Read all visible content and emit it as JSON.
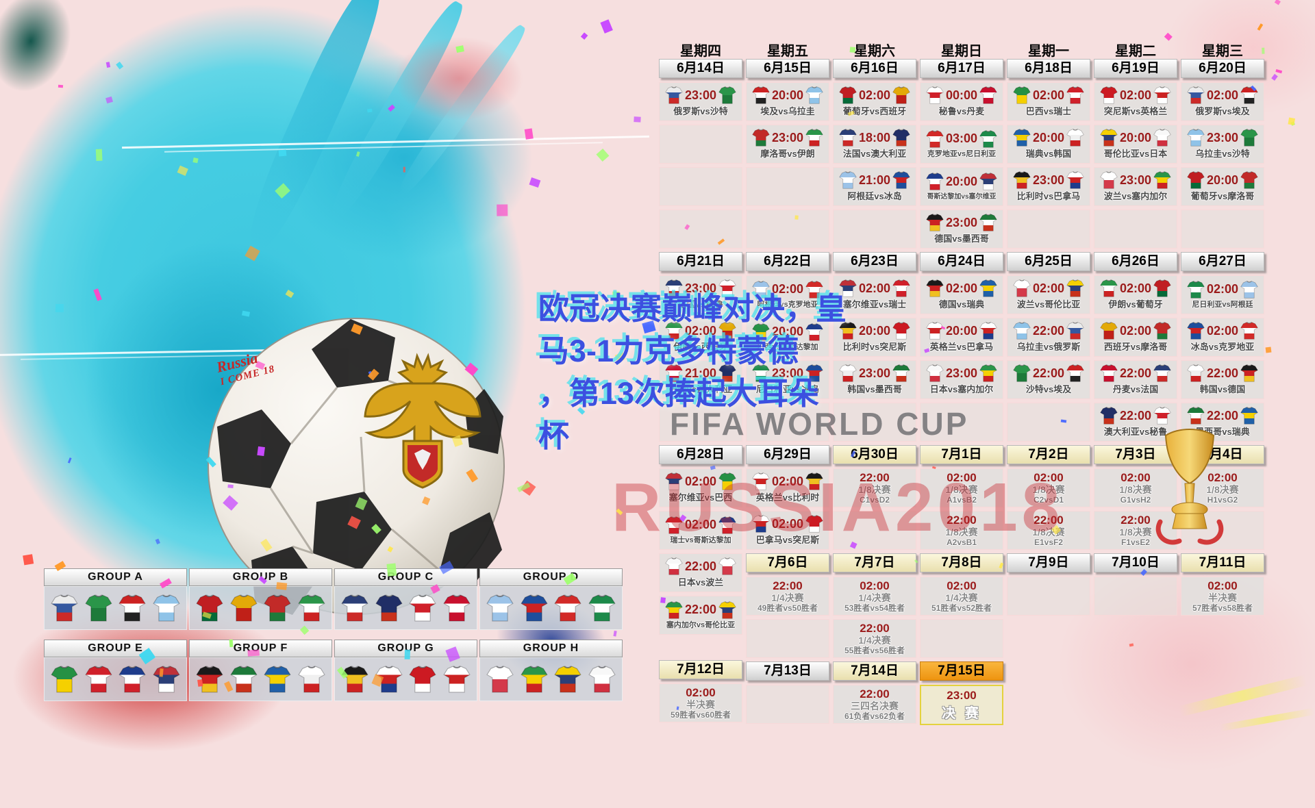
{
  "page": {
    "headline": "欧冠决赛巅峰对决，皇\n马3-1力克多特蒙德\n，第13次捧起大耳朵\n杯",
    "watermark": "FIFA WORLD CUP",
    "brand": "RUSSIA2018",
    "ball_script_1": "Russia",
    "ball_script_2": "I COME 18"
  },
  "colors": {
    "time_red": "#9b1b1b",
    "headline_blue": "#3c50e0",
    "brand_red": "#c6262c",
    "final_orange": "#ee9410"
  },
  "calendar": {
    "vs": "vs",
    "weekdays": [
      "星期四",
      "星期五",
      "星期六",
      "星期日",
      "星期一",
      "星期二",
      "星期三"
    ],
    "columns": [
      [
        {
          "type": "wd",
          "text": "星期四"
        },
        {
          "type": "date",
          "text": "6月14日",
          "variant": "w"
        },
        {
          "type": "match",
          "time": "23:00",
          "home": "俄罗斯",
          "away": "沙特"
        },
        {
          "type": "empty"
        },
        {
          "type": "empty"
        },
        {
          "type": "empty"
        },
        {
          "type": "date",
          "text": "6月21日",
          "variant": "w"
        },
        {
          "type": "match",
          "time": "23:00",
          "home": "法国",
          "away": "秘鲁"
        },
        {
          "type": "match",
          "time": "02:00",
          "home": "伊朗",
          "away": "西班牙"
        },
        {
          "type": "match",
          "time": "21:00",
          "home": "丹麦",
          "away": "澳大利亚"
        },
        {
          "type": "empty"
        },
        {
          "type": "date",
          "text": "6月28日",
          "variant": "w"
        },
        {
          "type": "match",
          "time": "02:00",
          "home": "塞尔维亚",
          "away": "巴西"
        },
        {
          "type": "match",
          "time": "02:00",
          "home": "瑞士",
          "away": "哥斯达黎加"
        },
        {
          "type": "match",
          "time": "22:00",
          "home": "日本",
          "away": "波兰"
        },
        {
          "type": "match",
          "time": "22:00",
          "home": "塞内加尔",
          "away": "哥伦比亚"
        },
        {
          "type": "gap",
          "h": 32
        },
        {
          "type": "date",
          "text": "7月12日",
          "variant": "c"
        },
        {
          "type": "ko",
          "time": "02:00",
          "stage": "半决赛",
          "teams": "59胜者vs60胜者"
        }
      ],
      [
        {
          "type": "wd",
          "text": "星期五"
        },
        {
          "type": "date",
          "text": "6月15日",
          "variant": "w"
        },
        {
          "type": "match",
          "time": "20:00",
          "home": "埃及",
          "away": "乌拉圭"
        },
        {
          "type": "match",
          "time": "23:00",
          "home": "摩洛哥",
          "away": "伊朗"
        },
        {
          "type": "empty"
        },
        {
          "type": "empty"
        },
        {
          "type": "date",
          "text": "6月22日",
          "variant": "w"
        },
        {
          "type": "match",
          "time": "02:00",
          "home": "阿根廷",
          "away": "克罗地亚"
        },
        {
          "type": "match",
          "time": "20:00",
          "home": "巴西",
          "away": "哥斯达黎加"
        },
        {
          "type": "match",
          "time": "23:00",
          "home": "尼日利亚",
          "away": "冰岛"
        },
        {
          "type": "empty"
        },
        {
          "type": "date",
          "text": "6月29日",
          "variant": "w"
        },
        {
          "type": "match",
          "time": "02:00",
          "home": "英格兰",
          "away": "比利时"
        },
        {
          "type": "match",
          "time": "02:00",
          "home": "巴拿马",
          "away": "突尼斯"
        },
        {
          "type": "date",
          "text": "7月6日",
          "variant": "c"
        },
        {
          "type": "ko",
          "time": "22:00",
          "stage": "1/4决赛",
          "teams": "49胜者vs50胜者"
        },
        {
          "type": "empty"
        },
        {
          "type": "date",
          "text": "7月13日",
          "variant": "w"
        },
        {
          "type": "empty"
        }
      ],
      [
        {
          "type": "wd",
          "text": "星期六"
        },
        {
          "type": "date",
          "text": "6月16日",
          "variant": "w"
        },
        {
          "type": "match",
          "time": "02:00",
          "home": "葡萄牙",
          "away": "西班牙"
        },
        {
          "type": "match",
          "time": "18:00",
          "home": "法国",
          "away": "澳大利亚"
        },
        {
          "type": "match",
          "time": "21:00",
          "home": "阿根廷",
          "away": "冰岛"
        },
        {
          "type": "empty"
        },
        {
          "type": "date",
          "text": "6月23日",
          "variant": "w"
        },
        {
          "type": "match",
          "time": "02:00",
          "home": "塞尔维亚",
          "away": "瑞士"
        },
        {
          "type": "match",
          "time": "20:00",
          "home": "比利时",
          "away": "突尼斯"
        },
        {
          "type": "match",
          "time": "23:00",
          "home": "韩国",
          "away": "墨西哥"
        },
        {
          "type": "empty"
        },
        {
          "type": "date",
          "text": "6月30日",
          "variant": "c"
        },
        {
          "type": "ko",
          "time": "22:00",
          "stage": "1/8决赛",
          "teams": "C1vsD2"
        },
        {
          "type": "empty"
        },
        {
          "type": "date",
          "text": "7月7日",
          "variant": "c"
        },
        {
          "type": "ko",
          "time": "02:00",
          "stage": "1/4决赛",
          "teams": "53胜者vs54胜者"
        },
        {
          "type": "ko",
          "time": "22:00",
          "stage": "1/4决赛",
          "teams": "55胜者vs56胜者"
        },
        {
          "type": "date",
          "text": "7月14日",
          "variant": "c"
        },
        {
          "type": "ko",
          "time": "22:00",
          "stage": "三四名决赛",
          "teams": "61负者vs62负者"
        }
      ],
      [
        {
          "type": "wd",
          "text": "星期日"
        },
        {
          "type": "date",
          "text": "6月17日",
          "variant": "w"
        },
        {
          "type": "match",
          "time": "00:00",
          "home": "秘鲁",
          "away": "丹麦"
        },
        {
          "type": "match",
          "time": "03:00",
          "home": "克罗地亚",
          "away": "尼日利亚"
        },
        {
          "type": "match",
          "time": "20:00",
          "home": "哥斯达黎加",
          "away": "塞尔维亚"
        },
        {
          "type": "match",
          "time": "23:00",
          "home": "德国",
          "away": "墨西哥"
        },
        {
          "type": "date",
          "text": "6月24日",
          "variant": "w"
        },
        {
          "type": "match",
          "time": "02:00",
          "home": "德国",
          "away": "瑞典"
        },
        {
          "type": "match",
          "time": "20:00",
          "home": "英格兰",
          "away": "巴拿马"
        },
        {
          "type": "match",
          "time": "23:00",
          "home": "日本",
          "away": "塞内加尔"
        },
        {
          "type": "empty"
        },
        {
          "type": "date",
          "text": "7月1日",
          "variant": "c"
        },
        {
          "type": "ko",
          "time": "02:00",
          "stage": "1/8决赛",
          "teams": "A1vsB2"
        },
        {
          "type": "ko",
          "time": "22:00",
          "stage": "1/8决赛",
          "teams": "A2vsB1"
        },
        {
          "type": "date",
          "text": "7月8日",
          "variant": "c"
        },
        {
          "type": "ko",
          "time": "02:00",
          "stage": "1/4决赛",
          "teams": "51胜者vs52胜者"
        },
        {
          "type": "empty"
        },
        {
          "type": "date",
          "text": "7月15日",
          "variant": "o"
        },
        {
          "type": "final",
          "time": "23:00",
          "stage": "决 赛"
        }
      ],
      [
        {
          "type": "wd",
          "text": "星期一"
        },
        {
          "type": "date",
          "text": "6月18日",
          "variant": "w"
        },
        {
          "type": "match",
          "time": "02:00",
          "home": "巴西",
          "away": "瑞士"
        },
        {
          "type": "match",
          "time": "20:00",
          "home": "瑞典",
          "away": "韩国"
        },
        {
          "type": "match",
          "time": "23:00",
          "home": "比利时",
          "away": "巴拿马"
        },
        {
          "type": "empty"
        },
        {
          "type": "date",
          "text": "6月25日",
          "variant": "w"
        },
        {
          "type": "match",
          "time": "02:00",
          "home": "波兰",
          "away": "哥伦比亚"
        },
        {
          "type": "match",
          "time": "22:00",
          "home": "乌拉圭",
          "away": "俄罗斯"
        },
        {
          "type": "match",
          "time": "22:00",
          "home": "沙特",
          "away": "埃及"
        },
        {
          "type": "empty"
        },
        {
          "type": "date",
          "text": "7月2日",
          "variant": "c"
        },
        {
          "type": "ko",
          "time": "02:00",
          "stage": "1/8决赛",
          "teams": "C2vsD1"
        },
        {
          "type": "ko",
          "time": "22:00",
          "stage": "1/8决赛",
          "teams": "E1vsF2"
        },
        {
          "type": "date",
          "text": "7月9日",
          "variant": "w"
        },
        {
          "type": "empty"
        }
      ],
      [
        {
          "type": "wd",
          "text": "星期二"
        },
        {
          "type": "date",
          "text": "6月19日",
          "variant": "w"
        },
        {
          "type": "match",
          "time": "02:00",
          "home": "突尼斯",
          "away": "英格兰"
        },
        {
          "type": "match",
          "time": "20:00",
          "home": "哥伦比亚",
          "away": "日本"
        },
        {
          "type": "match",
          "time": "23:00",
          "home": "波兰",
          "away": "塞内加尔"
        },
        {
          "type": "empty"
        },
        {
          "type": "date",
          "text": "6月26日",
          "variant": "w"
        },
        {
          "type": "match",
          "time": "02:00",
          "home": "伊朗",
          "away": "葡萄牙"
        },
        {
          "type": "match",
          "time": "02:00",
          "home": "西班牙",
          "away": "摩洛哥"
        },
        {
          "type": "match",
          "time": "22:00",
          "home": "丹麦",
          "away": "法国"
        },
        {
          "type": "match",
          "time": "22:00",
          "home": "澳大利亚",
          "away": "秘鲁"
        },
        {
          "type": "date",
          "text": "7月3日",
          "variant": "c"
        },
        {
          "type": "ko",
          "time": "02:00",
          "stage": "1/8决赛",
          "teams": "G1vsH2"
        },
        {
          "type": "ko",
          "time": "22:00",
          "stage": "1/8决赛",
          "teams": "F1vsE2"
        },
        {
          "type": "date",
          "text": "7月10日",
          "variant": "w"
        },
        {
          "type": "empty"
        }
      ],
      [
        {
          "type": "wd",
          "text": "星期三"
        },
        {
          "type": "date",
          "text": "6月20日",
          "variant": "w"
        },
        {
          "type": "match",
          "time": "02:00",
          "home": "俄罗斯",
          "away": "埃及"
        },
        {
          "type": "match",
          "time": "23:00",
          "home": "乌拉圭",
          "away": "沙特"
        },
        {
          "type": "match",
          "time": "20:00",
          "home": "葡萄牙",
          "away": "摩洛哥"
        },
        {
          "type": "empty"
        },
        {
          "type": "date",
          "text": "6月27日",
          "variant": "w"
        },
        {
          "type": "match",
          "time": "02:00",
          "home": "尼日利亚",
          "away": "阿根廷"
        },
        {
          "type": "match",
          "time": "02:00",
          "home": "冰岛",
          "away": "克罗地亚"
        },
        {
          "type": "match",
          "time": "22:00",
          "home": "韩国",
          "away": "德国"
        },
        {
          "type": "match",
          "time": "22:00",
          "home": "墨西哥",
          "away": "瑞典"
        },
        {
          "type": "date",
          "text": "7月4日",
          "variant": "c"
        },
        {
          "type": "ko",
          "time": "02:00",
          "stage": "1/8决赛",
          "teams": "H1vsG2"
        },
        {
          "type": "empty"
        },
        {
          "type": "date",
          "text": "7月11日",
          "variant": "c"
        },
        {
          "type": "ko",
          "time": "02:00",
          "stage": "半决赛",
          "teams": "57胜者vs58胜者"
        }
      ]
    ]
  },
  "groups": [
    {
      "label": "GROUP A",
      "teams": [
        "俄罗斯",
        "沙特",
        "埃及",
        "乌拉圭"
      ]
    },
    {
      "label": "GROUP B",
      "teams": [
        "葡萄牙",
        "西班牙",
        "摩洛哥",
        "伊朗"
      ]
    },
    {
      "label": "GROUP C",
      "teams": [
        "法国",
        "澳大利亚",
        "秘鲁",
        "丹麦"
      ]
    },
    {
      "label": "GROUP D",
      "teams": [
        "阿根廷",
        "冰岛",
        "克罗地亚",
        "尼日利亚"
      ]
    },
    {
      "label": "GROUP E",
      "teams": [
        "巴西",
        "瑞士",
        "哥斯达黎加",
        "塞尔维亚"
      ]
    },
    {
      "label": "GROUP F",
      "teams": [
        "德国",
        "墨西哥",
        "瑞典",
        "韩国"
      ]
    },
    {
      "label": "GROUP G",
      "teams": [
        "比利时",
        "巴拿马",
        "突尼斯",
        "英格兰"
      ]
    },
    {
      "label": "GROUP H",
      "teams": [
        "波兰",
        "塞内加尔",
        "哥伦比亚",
        "日本"
      ]
    }
  ],
  "teams": {
    "俄罗斯": [
      "#ececec",
      "#3558a0",
      "#cc2a28"
    ],
    "沙特": [
      "#2a9549",
      "#1d7a3a"
    ],
    "埃及": [
      "#cc2222",
      "#ffffff",
      "#222222"
    ],
    "乌拉圭": [
      "#8fc3e8",
      "#ffffff",
      "#8fc3e8"
    ],
    "葡萄牙": [
      "#c01e22",
      "#c01e22",
      "#046a38"
    ],
    "西班牙": [
      "#e3a908",
      "#c02018"
    ],
    "摩洛哥": [
      "#c22a28",
      "#c22a28",
      "#1d7a3a"
    ],
    "伊朗": [
      "#2a9549",
      "#ffffff",
      "#cc2222"
    ],
    "法国": [
      "#2b3f77",
      "#ffffff",
      "#cc2a28"
    ],
    "澳大利亚": [
      "#202e66",
      "#202e66",
      "#c8311b"
    ],
    "秘鲁": [
      "#ffffff",
      "#d0202a",
      "#ffffff"
    ],
    "丹麦": [
      "#c8102e",
      "#ffffff",
      "#c8102e"
    ],
    "阿根廷": [
      "#9cc3e8",
      "#ffffff",
      "#9cc3e8"
    ],
    "冰岛": [
      "#1e4e9c",
      "#cc2222",
      "#1e4e9c"
    ],
    "克罗地亚": [
      "#d22a28",
      "#ffffff",
      "#d22a28"
    ],
    "尼日利亚": [
      "#1d8a4a",
      "#ffffff",
      "#1d8a4a"
    ],
    "巴西": [
      "#259144",
      "#f5d000"
    ],
    "瑞士": [
      "#d0202a",
      "#ffffff",
      "#d0202a"
    ],
    "哥斯达黎加": [
      "#1e3c8c",
      "#ffffff",
      "#d0202a"
    ],
    "塞尔维亚": [
      "#c03038",
      "#2b3f77",
      "#ffffff"
    ],
    "德国": [
      "#1a1a1a",
      "#cc2222",
      "#f0c020"
    ],
    "墨西哥": [
      "#1d7a3a",
      "#ffffff",
      "#c8311b"
    ],
    "瑞典": [
      "#2060a8",
      "#f5d000",
      "#2060a8"
    ],
    "韩国": [
      "#ffffff",
      "#f0f0f0",
      "#cc2222"
    ],
    "比利时": [
      "#1a1a1a",
      "#f0c020",
      "#cc2222"
    ],
    "巴拿马": [
      "#ffffff",
      "#cc2222",
      "#1e3c8c"
    ],
    "突尼斯": [
      "#cc1a22",
      "#cc1a22",
      "#ffffff"
    ],
    "英格兰": [
      "#ffffff",
      "#cc2222",
      "#ffffff"
    ],
    "波兰": [
      "#ffffff",
      "#d43a4a"
    ],
    "塞内加尔": [
      "#2a9549",
      "#f5d000",
      "#cc2222"
    ],
    "哥伦比亚": [
      "#f5d000",
      "#2b3f77",
      "#c8311b"
    ],
    "日本": [
      "#f8f8f8",
      "#ffffff",
      "#d03040"
    ]
  }
}
